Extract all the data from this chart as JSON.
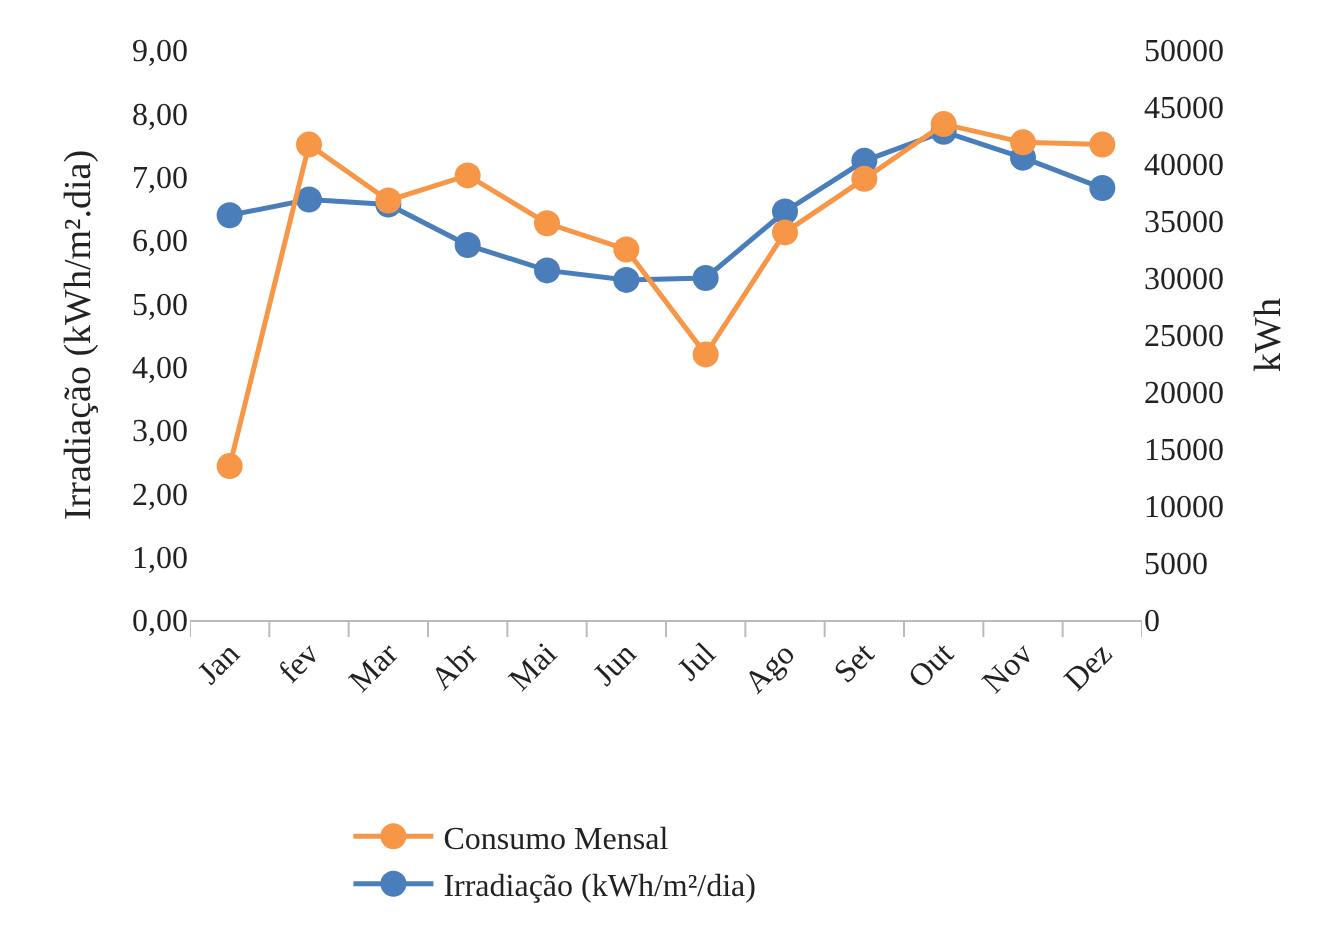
{
  "chart_data": {
    "type": "line",
    "categories": [
      "Jan",
      "fev",
      "Mar",
      "Abr",
      "Mai",
      "Jun",
      "Jul",
      "Ago",
      "Set",
      "Out",
      "Nov",
      "Dez"
    ],
    "ylabel": "Irradiação (kWh/m².dia)",
    "y2label": "kWh",
    "ylim": [
      0,
      9
    ],
    "yticks": [
      {
        "value": 0,
        "label": "0,00"
      },
      {
        "value": 1,
        "label": "1,00"
      },
      {
        "value": 2,
        "label": "2,00"
      },
      {
        "value": 3,
        "label": "3,00"
      },
      {
        "value": 4,
        "label": "4,00"
      },
      {
        "value": 5,
        "label": "5,00"
      },
      {
        "value": 6,
        "label": "6,00"
      },
      {
        "value": 7,
        "label": "7,00"
      },
      {
        "value": 8,
        "label": "8,00"
      },
      {
        "value": 9,
        "label": "9,00"
      }
    ],
    "y2lim": [
      0,
      50000
    ],
    "y2ticks": [
      0,
      5000,
      10000,
      15000,
      20000,
      25000,
      30000,
      35000,
      40000,
      45000,
      50000
    ],
    "series": [
      {
        "name": "Irradiação (kWh/m²/dia)",
        "color": "#4a7ebb",
        "values": [
          6.39,
          6.64,
          6.56,
          5.92,
          5.52,
          5.37,
          5.4,
          6.45,
          7.25,
          7.71,
          7.3,
          6.82
        ]
      },
      {
        "name": "Consumo Mensal",
        "color": "#f79646",
        "axis": "y2",
        "values": [
          13500,
          41700,
          36800,
          39000,
          34800,
          32500,
          23300,
          34000,
          38700,
          43500,
          41900,
          41700
        ]
      }
    ],
    "legend": "bottom",
    "marker": "circle",
    "line_style": "solid"
  }
}
